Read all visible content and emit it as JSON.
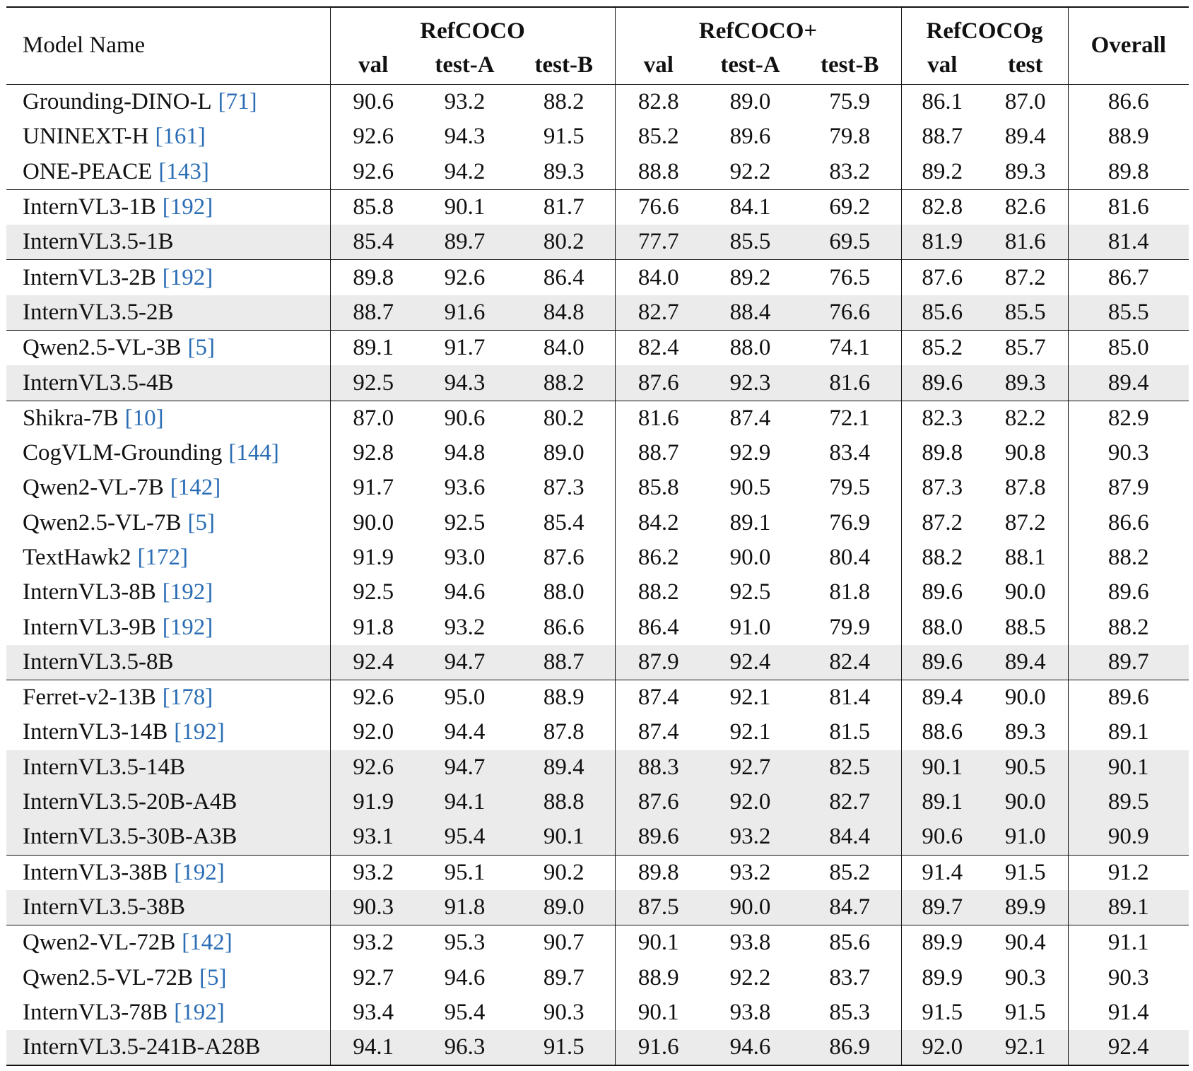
{
  "table": {
    "header": {
      "model": "Model Name",
      "groups": [
        {
          "name": "RefCOCO",
          "columns": [
            "val",
            "test-A",
            "test-B"
          ]
        },
        {
          "name": "RefCOCO+",
          "columns": [
            "val",
            "test-A",
            "test-B"
          ]
        },
        {
          "name": "RefCOCOg",
          "columns": [
            "val",
            "test"
          ]
        }
      ],
      "overall": "Overall"
    },
    "groups": [
      [
        {
          "model": "Grounding-DINO-L",
          "ref": "[71]",
          "values": [
            "90.6",
            "93.2",
            "88.2",
            "82.8",
            "89.0",
            "75.9",
            "86.1",
            "87.0",
            "86.6"
          ]
        },
        {
          "model": "UNINEXT-H",
          "ref": "[161]",
          "values": [
            "92.6",
            "94.3",
            "91.5",
            "85.2",
            "89.6",
            "79.8",
            "88.7",
            "89.4",
            "88.9"
          ]
        },
        {
          "model": "ONE-PEACE",
          "ref": "[143]",
          "values": [
            "92.6",
            "94.2",
            "89.3",
            "88.8",
            "92.2",
            "83.2",
            "89.2",
            "89.3",
            "89.8"
          ]
        }
      ],
      [
        {
          "model": "InternVL3-1B",
          "ref": "[192]",
          "values": [
            "85.8",
            "90.1",
            "81.7",
            "76.6",
            "84.1",
            "69.2",
            "82.8",
            "82.6",
            "81.6"
          ]
        },
        {
          "model": "InternVL3.5-1B",
          "highlight": true,
          "values": [
            "85.4",
            "89.7",
            "80.2",
            "77.7",
            "85.5",
            "69.5",
            "81.9",
            "81.6",
            "81.4"
          ]
        }
      ],
      [
        {
          "model": "InternVL3-2B",
          "ref": "[192]",
          "values": [
            "89.8",
            "92.6",
            "86.4",
            "84.0",
            "89.2",
            "76.5",
            "87.6",
            "87.2",
            "86.7"
          ]
        },
        {
          "model": "InternVL3.5-2B",
          "highlight": true,
          "values": [
            "88.7",
            "91.6",
            "84.8",
            "82.7",
            "88.4",
            "76.6",
            "85.6",
            "85.5",
            "85.5"
          ]
        }
      ],
      [
        {
          "model": "Qwen2.5-VL-3B",
          "ref": "[5]",
          "values": [
            "89.1",
            "91.7",
            "84.0",
            "82.4",
            "88.0",
            "74.1",
            "85.2",
            "85.7",
            "85.0"
          ]
        },
        {
          "model": "InternVL3.5-4B",
          "highlight": true,
          "values": [
            "92.5",
            "94.3",
            "88.2",
            "87.6",
            "92.3",
            "81.6",
            "89.6",
            "89.3",
            "89.4"
          ]
        }
      ],
      [
        {
          "model": "Shikra-7B",
          "ref": "[10]",
          "values": [
            "87.0",
            "90.6",
            "80.2",
            "81.6",
            "87.4",
            "72.1",
            "82.3",
            "82.2",
            "82.9"
          ]
        },
        {
          "model": "CogVLM-Grounding",
          "ref": "[144]",
          "values": [
            "92.8",
            "94.8",
            "89.0",
            "88.7",
            "92.9",
            "83.4",
            "89.8",
            "90.8",
            "90.3"
          ]
        },
        {
          "model": "Qwen2-VL-7B",
          "ref": "[142]",
          "values": [
            "91.7",
            "93.6",
            "87.3",
            "85.8",
            "90.5",
            "79.5",
            "87.3",
            "87.8",
            "87.9"
          ]
        },
        {
          "model": "Qwen2.5-VL-7B",
          "ref": "[5]",
          "values": [
            "90.0",
            "92.5",
            "85.4",
            "84.2",
            "89.1",
            "76.9",
            "87.2",
            "87.2",
            "86.6"
          ]
        },
        {
          "model": "TextHawk2",
          "ref": "[172]",
          "values": [
            "91.9",
            "93.0",
            "87.6",
            "86.2",
            "90.0",
            "80.4",
            "88.2",
            "88.1",
            "88.2"
          ]
        },
        {
          "model": "InternVL3-8B",
          "ref": "[192]",
          "values": [
            "92.5",
            "94.6",
            "88.0",
            "88.2",
            "92.5",
            "81.8",
            "89.6",
            "90.0",
            "89.6"
          ]
        },
        {
          "model": "InternVL3-9B",
          "ref": "[192]",
          "values": [
            "91.8",
            "93.2",
            "86.6",
            "86.4",
            "91.0",
            "79.9",
            "88.0",
            "88.5",
            "88.2"
          ]
        },
        {
          "model": "InternVL3.5-8B",
          "highlight": true,
          "values": [
            "92.4",
            "94.7",
            "88.7",
            "87.9",
            "92.4",
            "82.4",
            "89.6",
            "89.4",
            "89.7"
          ]
        }
      ],
      [
        {
          "model": "Ferret-v2-13B",
          "ref": "[178]",
          "values": [
            "92.6",
            "95.0",
            "88.9",
            "87.4",
            "92.1",
            "81.4",
            "89.4",
            "90.0",
            "89.6"
          ]
        },
        {
          "model": "InternVL3-14B",
          "ref": "[192]",
          "values": [
            "92.0",
            "94.4",
            "87.8",
            "87.4",
            "92.1",
            "81.5",
            "88.6",
            "89.3",
            "89.1"
          ]
        },
        {
          "model": "InternVL3.5-14B",
          "highlight": true,
          "values": [
            "92.6",
            "94.7",
            "89.4",
            "88.3",
            "92.7",
            "82.5",
            "90.1",
            "90.5",
            "90.1"
          ]
        },
        {
          "model": "InternVL3.5-20B-A4B",
          "highlight": true,
          "values": [
            "91.9",
            "94.1",
            "88.8",
            "87.6",
            "92.0",
            "82.7",
            "89.1",
            "90.0",
            "89.5"
          ]
        },
        {
          "model": "InternVL3.5-30B-A3B",
          "highlight": true,
          "values": [
            "93.1",
            "95.4",
            "90.1",
            "89.6",
            "93.2",
            "84.4",
            "90.6",
            "91.0",
            "90.9"
          ]
        }
      ],
      [
        {
          "model": "InternVL3-38B",
          "ref": "[192]",
          "values": [
            "93.2",
            "95.1",
            "90.2",
            "89.8",
            "93.2",
            "85.2",
            "91.4",
            "91.5",
            "91.2"
          ]
        },
        {
          "model": "InternVL3.5-38B",
          "highlight": true,
          "values": [
            "90.3",
            "91.8",
            "89.0",
            "87.5",
            "90.0",
            "84.7",
            "89.7",
            "89.9",
            "89.1"
          ]
        }
      ],
      [
        {
          "model": "Qwen2-VL-72B",
          "ref": "[142]",
          "values": [
            "93.2",
            "95.3",
            "90.7",
            "90.1",
            "93.8",
            "85.6",
            "89.9",
            "90.4",
            "91.1"
          ]
        },
        {
          "model": "Qwen2.5-VL-72B",
          "ref": "[5]",
          "values": [
            "92.7",
            "94.6",
            "89.7",
            "88.9",
            "92.2",
            "83.7",
            "89.9",
            "90.3",
            "90.3"
          ]
        },
        {
          "model": "InternVL3-78B",
          "ref": "[192]",
          "values": [
            "93.4",
            "95.4",
            "90.3",
            "90.1",
            "93.8",
            "85.3",
            "91.5",
            "91.5",
            "91.4"
          ]
        },
        {
          "model": "InternVL3.5-241B-A28B",
          "highlight": true,
          "values": [
            "94.1",
            "96.3",
            "91.5",
            "91.6",
            "94.6",
            "86.9",
            "92.0",
            "92.1",
            "92.4"
          ]
        }
      ]
    ]
  }
}
